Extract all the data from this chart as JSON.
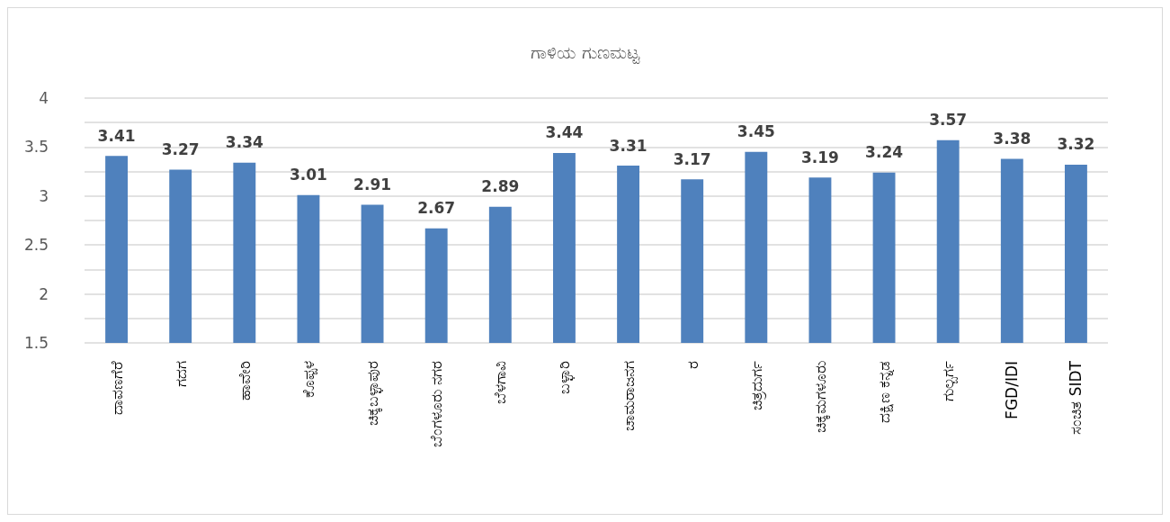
{
  "chart_data": {
    "type": "bar",
    "title": "ಗಾಳಿಯ ಗುಣಮಟ್ಟ",
    "categories": [
      "ದಾವಣಗೆರೆ",
      "ಗದಗ",
      "ಹಾವೇರಿ",
      "ಕೊಪ್ಪಳ",
      "ಚಿಕ್ಕಬಳ್ಳಾಪುರ",
      "ಬೆಂಗಳೂರು ನಗರ",
      "ಬೆಳಗಾವಿ",
      "ಬಳ್ಳಾರಿ",
      "ಚಾಮರಾಜನಗ",
      "ರ",
      "ಚಿತ್ರದುರ್ಗ",
      "ಚಿಕ್ಕಮಗಳೂರು",
      "ದಕ್ಷಿಣ ಕನ್ನಡ",
      "ಗುಲ್ಬರ್ಗ",
      "FGD/IDI",
      "ಸಂಚಿತ SIDT"
    ],
    "values": [
      3.41,
      3.27,
      3.34,
      3.01,
      2.91,
      2.67,
      2.89,
      3.44,
      3.31,
      3.17,
      3.45,
      3.19,
      3.24,
      3.57,
      3.38,
      3.32
    ],
    "color": "#4f81bd",
    "data_labels": true,
    "grid": "y",
    "ylim": [
      1.5,
      4
    ],
    "yticks": [
      1.5,
      {
        "value": 1.75,
        "label": null
      },
      2,
      {
        "value": 2.25,
        "label": null
      },
      2.5,
      {
        "value": 2.75,
        "label": null
      },
      3,
      {
        "value": 3.25,
        "label": null
      },
      3.5,
      {
        "value": 3.75,
        "label": null
      },
      4
    ]
  }
}
